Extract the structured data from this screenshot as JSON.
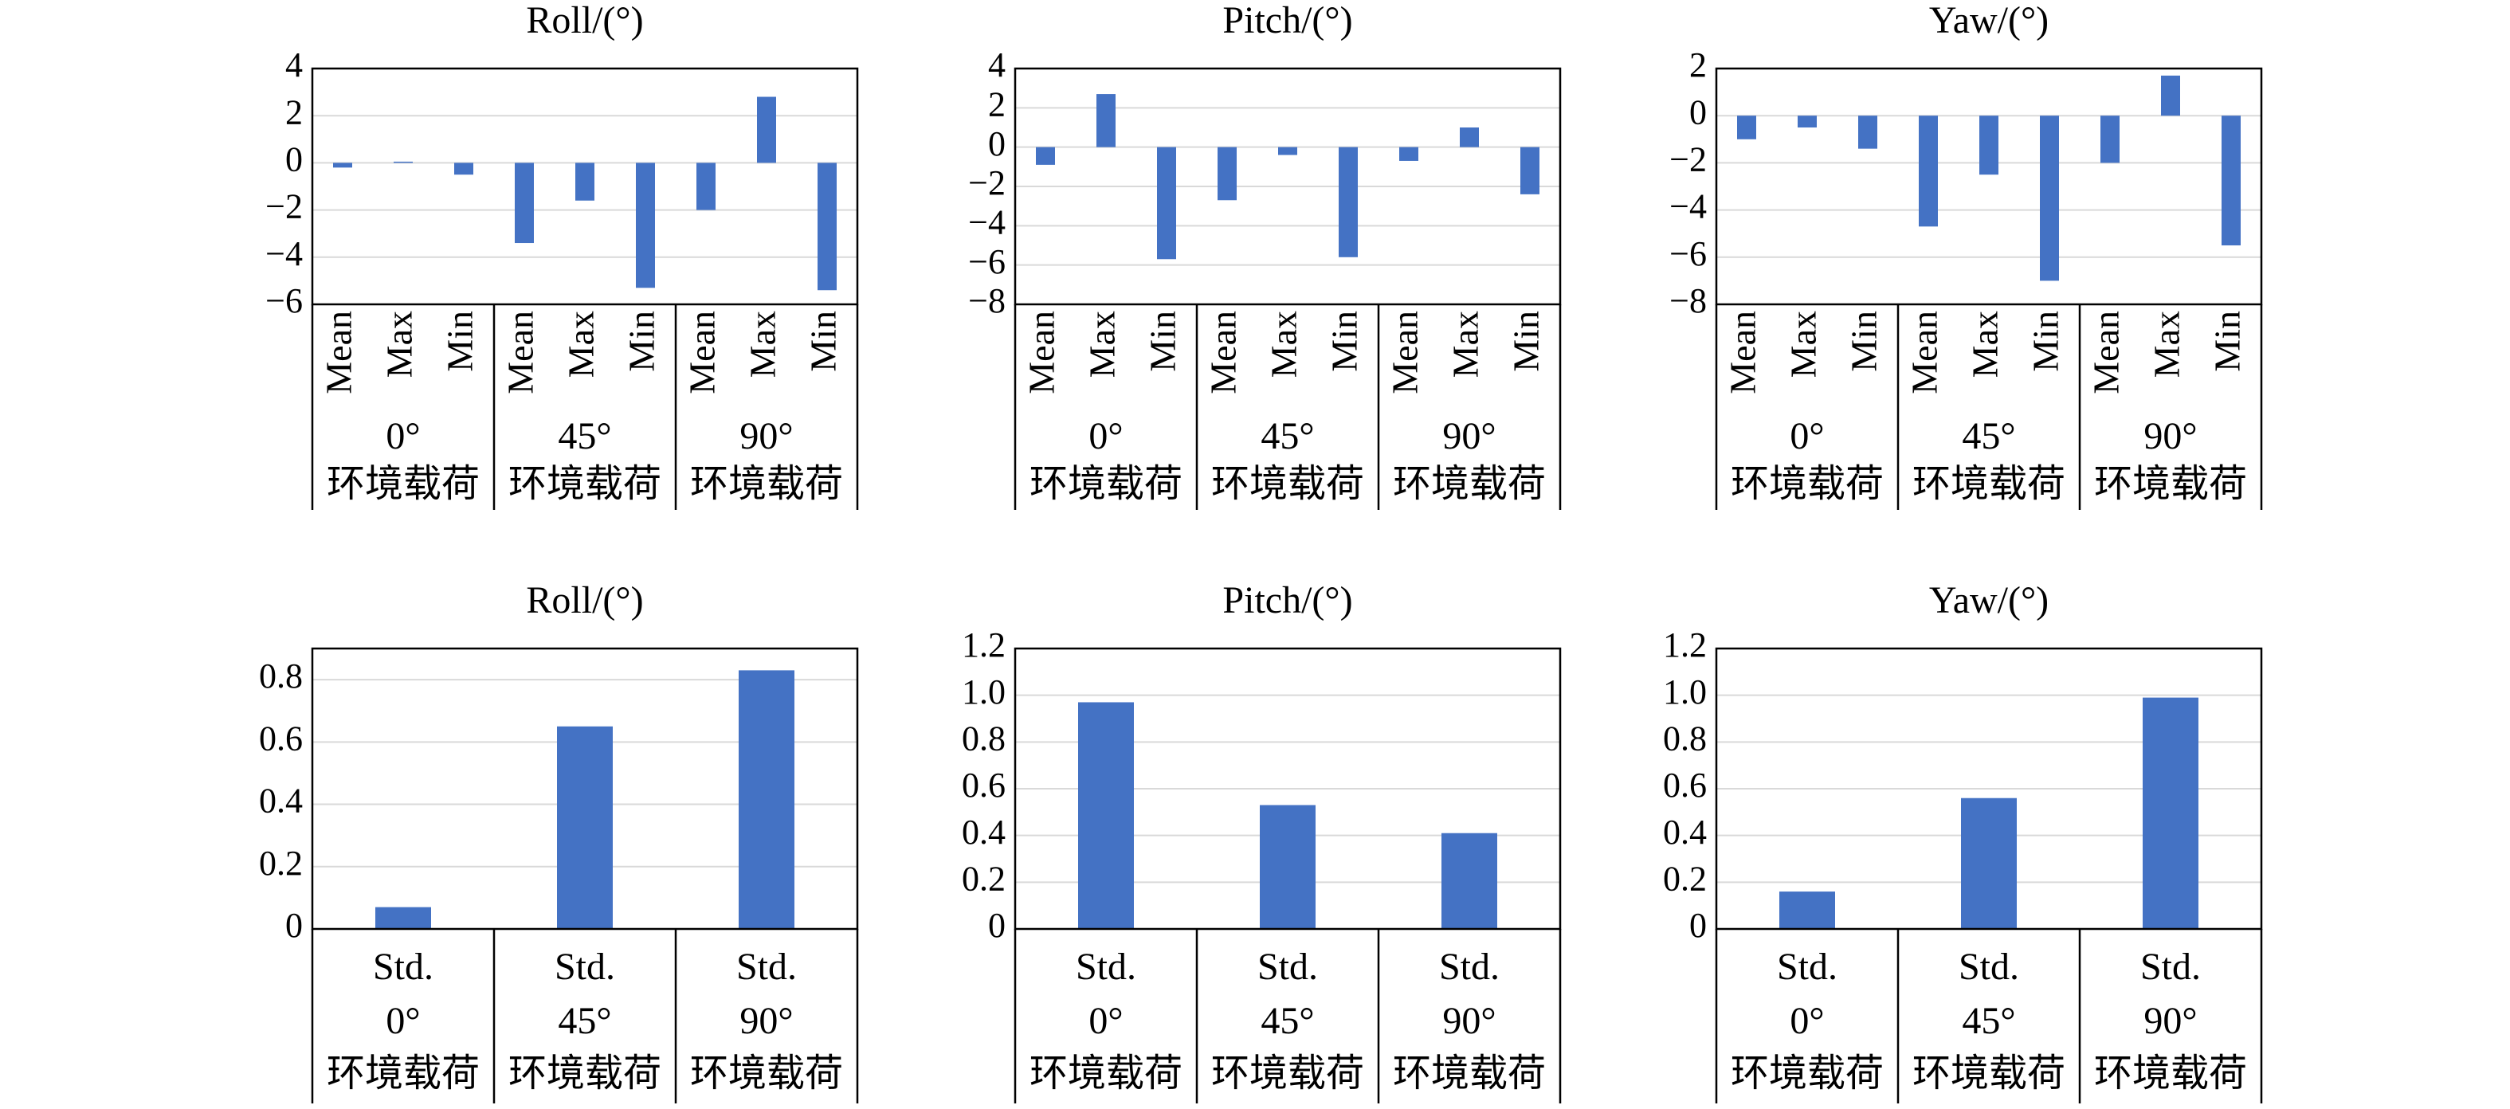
{
  "style": {
    "bar_color": "#4472C4",
    "grid_color": "#D9D9D9"
  },
  "chart_data": [
    {
      "type": "bar",
      "title": "Roll/(°)",
      "ylim": [
        -6,
        4
      ],
      "yticks": [
        4,
        2,
        0,
        -2,
        -4,
        -6
      ],
      "ytick_labels": [
        "4",
        "2",
        "0",
        "−2",
        "−4",
        "−6"
      ],
      "grid": true,
      "groups": [
        {
          "label_top": "0°",
          "label_bottom": "环境载荷",
          "categories": [
            "Mean",
            "Max",
            "Min"
          ],
          "values": [
            -0.2,
            0.05,
            -0.5
          ]
        },
        {
          "label_top": "45°",
          "label_bottom": "环境载荷",
          "categories": [
            "Mean",
            "Max",
            "Min"
          ],
          "values": [
            -3.4,
            -1.6,
            -5.3
          ]
        },
        {
          "label_top": "90°",
          "label_bottom": "环境载荷",
          "categories": [
            "Mean",
            "Max",
            "Min"
          ],
          "values": [
            -2.0,
            2.8,
            -5.4
          ]
        }
      ]
    },
    {
      "type": "bar",
      "title": "Pitch/(°)",
      "ylim": [
        -8,
        4
      ],
      "yticks": [
        4,
        2,
        0,
        -2,
        -4,
        -6,
        -8
      ],
      "ytick_labels": [
        "4",
        "2",
        "0",
        "−2",
        "−4",
        "−6",
        "−8"
      ],
      "grid": true,
      "groups": [
        {
          "label_top": "0°",
          "label_bottom": "环境载荷",
          "categories": [
            "Mean",
            "Max",
            "Min"
          ],
          "values": [
            -0.9,
            2.7,
            -5.7
          ]
        },
        {
          "label_top": "45°",
          "label_bottom": "环境载荷",
          "categories": [
            "Mean",
            "Max",
            "Min"
          ],
          "values": [
            -2.7,
            -0.4,
            -5.6
          ]
        },
        {
          "label_top": "90°",
          "label_bottom": "环境载荷",
          "categories": [
            "Mean",
            "Max",
            "Min"
          ],
          "values": [
            -0.7,
            1.0,
            -2.4
          ]
        }
      ]
    },
    {
      "type": "bar",
      "title": "Yaw/(°)",
      "ylim": [
        -8,
        2
      ],
      "yticks": [
        2,
        0,
        -2,
        -4,
        -6,
        -8
      ],
      "ytick_labels": [
        "2",
        "0",
        "−2",
        "−4",
        "−6",
        "−8"
      ],
      "grid": true,
      "groups": [
        {
          "label_top": "0°",
          "label_bottom": "环境载荷",
          "categories": [
            "Mean",
            "Max",
            "Min"
          ],
          "values": [
            -1.0,
            -0.5,
            -1.4
          ]
        },
        {
          "label_top": "45°",
          "label_bottom": "环境载荷",
          "categories": [
            "Mean",
            "Max",
            "Min"
          ],
          "values": [
            -4.7,
            -2.5,
            -7.0
          ]
        },
        {
          "label_top": "90°",
          "label_bottom": "环境载荷",
          "categories": [
            "Mean",
            "Max",
            "Min"
          ],
          "values": [
            -2.0,
            1.7,
            -5.5
          ]
        }
      ]
    },
    {
      "type": "bar",
      "title": "Roll/(°)",
      "ylim": [
        0,
        0.9
      ],
      "yticks": [
        0.8,
        0.6,
        0.4,
        0.2,
        0
      ],
      "ytick_labels": [
        "0.8",
        "0.6",
        "0.4",
        "0.2",
        "0"
      ],
      "grid": true,
      "groups": [
        {
          "label_top": "0°",
          "label_bottom": "环境载荷",
          "categories": [
            "Std."
          ],
          "values": [
            0.07
          ]
        },
        {
          "label_top": "45°",
          "label_bottom": "环境载荷",
          "categories": [
            "Std."
          ],
          "values": [
            0.65
          ]
        },
        {
          "label_top": "90°",
          "label_bottom": "环境载荷",
          "categories": [
            "Std."
          ],
          "values": [
            0.83
          ]
        }
      ]
    },
    {
      "type": "bar",
      "title": "Pitch/(°)",
      "ylim": [
        0,
        1.2
      ],
      "yticks": [
        1.2,
        1.0,
        0.8,
        0.6,
        0.4,
        0.2,
        0
      ],
      "ytick_labels": [
        "1.2",
        "1.0",
        "0.8",
        "0.6",
        "0.4",
        "0.2",
        "0"
      ],
      "grid": true,
      "groups": [
        {
          "label_top": "0°",
          "label_bottom": "环境载荷",
          "categories": [
            "Std."
          ],
          "values": [
            0.97
          ]
        },
        {
          "label_top": "45°",
          "label_bottom": "环境载荷",
          "categories": [
            "Std."
          ],
          "values": [
            0.53
          ]
        },
        {
          "label_top": "90°",
          "label_bottom": "环境载荷",
          "categories": [
            "Std."
          ],
          "values": [
            0.41
          ]
        }
      ]
    },
    {
      "type": "bar",
      "title": "Yaw/(°)",
      "ylim": [
        0,
        1.2
      ],
      "yticks": [
        1.2,
        1.0,
        0.8,
        0.6,
        0.4,
        0.2,
        0
      ],
      "ytick_labels": [
        "1.2",
        "1.0",
        "0.8",
        "0.6",
        "0.4",
        "0.2",
        "0"
      ],
      "grid": true,
      "groups": [
        {
          "label_top": "0°",
          "label_bottom": "环境载荷",
          "categories": [
            "Std."
          ],
          "values": [
            0.16
          ]
        },
        {
          "label_top": "45°",
          "label_bottom": "环境载荷",
          "categories": [
            "Std."
          ],
          "values": [
            0.56
          ]
        },
        {
          "label_top": "90°",
          "label_bottom": "环境载荷",
          "categories": [
            "Std."
          ],
          "values": [
            0.99
          ]
        }
      ]
    }
  ]
}
